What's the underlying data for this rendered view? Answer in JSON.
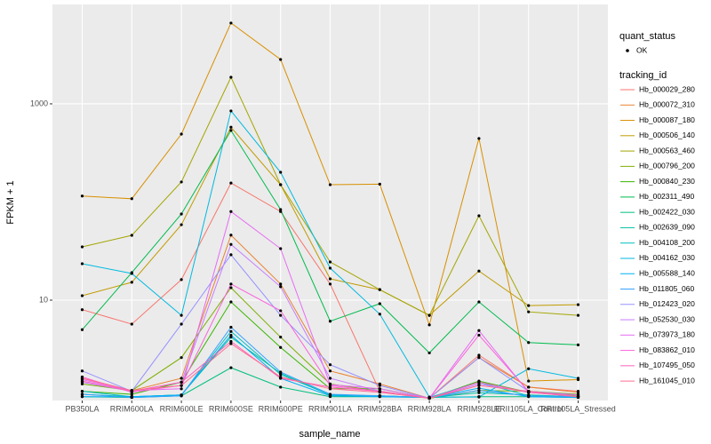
{
  "chart_data": {
    "type": "line",
    "log_y": true,
    "grid": true,
    "x_label": "sample_name",
    "y_label": "FPKM + 1",
    "categories": [
      "PB350LA",
      "RRIM600LA",
      "RRIM600LE",
      "RRIM600SE",
      "RRIM600PE",
      "RRIM901LA",
      "RRIM928BA",
      "RRIM928LA",
      "RRIM928LE",
      "RRII105LA_Control",
      "RRII105LA_Stressed"
    ],
    "ylim": [
      0.95,
      10300
    ],
    "yticks": [
      10,
      1000
    ],
    "point_color": "#000000",
    "shape_legend": {
      "title": "quant_status",
      "labels": [
        "OK"
      ]
    },
    "legend_title": "tracking_id",
    "series": [
      {
        "name": "Hb_000029_280",
        "color": "#F8766D",
        "values": [
          8.0,
          5.7,
          16.2,
          156,
          80,
          14.6,
          1.18,
          1.0,
          2.75,
          1.3,
          1.18
        ]
      },
      {
        "name": "Hb_000072_310",
        "color": "#EA8331",
        "values": [
          1.6,
          1.2,
          1.6,
          46,
          14.6,
          1.9,
          1.4,
          1.0,
          2.6,
          1.3,
          1.15
        ]
      },
      {
        "name": "Hb_000087_180",
        "color": "#D89000",
        "values": [
          115,
          108,
          492,
          6660,
          2830,
          150,
          152,
          5.6,
          444,
          1.5,
          1.55
        ]
      },
      {
        "name": "Hb_000506_140",
        "color": "#C09B00",
        "values": [
          11.1,
          15.2,
          58.7,
          578,
          150,
          16.5,
          12.8,
          7.0,
          19.8,
          8.8,
          9.0
        ]
      },
      {
        "name": "Hb_000563_460",
        "color": "#A3A500",
        "values": [
          34.9,
          45.8,
          160,
          1866,
          150,
          24.5,
          12.8,
          7.0,
          72.4,
          7.6,
          7.0
        ]
      },
      {
        "name": "Hb_000796_200",
        "color": "#7CAE00",
        "values": [
          1.4,
          1.2,
          2.6,
          13.4,
          4.2,
          1.4,
          1.18,
          1.0,
          1.2,
          1.18,
          1.1
        ]
      },
      {
        "name": "Hb_000840_230",
        "color": "#39B600",
        "values": [
          1.18,
          1.1,
          1.46,
          9.6,
          3.3,
          1.25,
          1.25,
          1.0,
          1.5,
          1.15,
          1.07
        ]
      },
      {
        "name": "Hb_002311_490",
        "color": "#00BB4E",
        "values": [
          5.0,
          19.1,
          75.5,
          536,
          83.8,
          6.1,
          9.2,
          2.9,
          9.6,
          3.7,
          3.5
        ]
      },
      {
        "name": "Hb_002422_030",
        "color": "#00BF7D",
        "values": [
          1.04,
          1.02,
          1.06,
          2.05,
          1.3,
          1.04,
          1.04,
          1.02,
          1.04,
          1.04,
          1.02
        ]
      },
      {
        "name": "Hb_002639_090",
        "color": "#00C1A3",
        "values": [
          1.1,
          1.04,
          1.08,
          4.2,
          1.8,
          1.08,
          1.06,
          1.02,
          1.14,
          1.08,
          1.04
        ]
      },
      {
        "name": "Hb_004108_200",
        "color": "#00BFC4",
        "values": [
          1.18,
          1.04,
          1.08,
          4.8,
          1.75,
          1.08,
          1.06,
          1.02,
          1.46,
          1.06,
          1.04
        ]
      },
      {
        "name": "Hb_004162_030",
        "color": "#00BAE0",
        "values": [
          23.5,
          18.7,
          7.0,
          847,
          201,
          21.2,
          7.2,
          1.03,
          1.03,
          2.0,
          1.6
        ]
      },
      {
        "name": "Hb_005588_140",
        "color": "#00B0F6",
        "values": [
          1.04,
          1.04,
          1.08,
          4.4,
          1.6,
          1.06,
          1.04,
          1.02,
          1.27,
          1.04,
          1.02
        ]
      },
      {
        "name": "Hb_011805_060",
        "color": "#35A2FF",
        "values": [
          1.1,
          1.02,
          1.06,
          5.3,
          1.85,
          1.1,
          1.06,
          1.02,
          1.2,
          1.06,
          1.04
        ]
      },
      {
        "name": "Hb_012423_020",
        "color": "#9590FF",
        "values": [
          1.9,
          1.18,
          5.7,
          29,
          7.0,
          2.2,
          1.35,
          1.0,
          2.6,
          1.18,
          1.08
        ]
      },
      {
        "name": "Hb_052530_030",
        "color": "#C77CFF",
        "values": [
          1.46,
          1.18,
          1.46,
          37,
          13.7,
          1.6,
          1.18,
          1.0,
          1.4,
          1.15,
          1.04
        ]
      },
      {
        "name": "Hb_073973_180",
        "color": "#E76BF3",
        "values": [
          1.55,
          1.2,
          1.25,
          80,
          33.5,
          1.38,
          1.25,
          1.0,
          4.9,
          1.15,
          1.08
        ]
      },
      {
        "name": "Hb_083862_010",
        "color": "#FA62DB",
        "values": [
          1.65,
          1.15,
          1.35,
          14.6,
          7.8,
          1.35,
          1.18,
          1.0,
          4.4,
          1.18,
          1.04
        ]
      },
      {
        "name": "Hb_107495_050",
        "color": "#FF62BC",
        "values": [
          1.5,
          1.18,
          1.46,
          3.8,
          1.6,
          1.3,
          1.18,
          1.0,
          1.46,
          1.15,
          1.04
        ]
      },
      {
        "name": "Hb_161045_010",
        "color": "#FF6C91",
        "values": [
          1.6,
          1.2,
          1.35,
          3.6,
          1.65,
          1.25,
          1.15,
          1.0,
          1.35,
          1.18,
          1.04
        ]
      }
    ]
  }
}
